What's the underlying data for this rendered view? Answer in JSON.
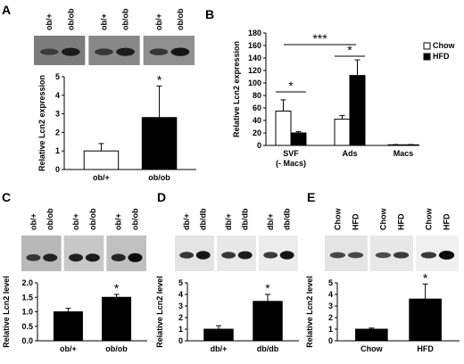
{
  "panels": {
    "A": {
      "letter": "A",
      "lanes": [
        "ob/+",
        "ob/ob",
        "ob/+",
        "ob/ob",
        "ob/+",
        "ob/ob"
      ],
      "chart": {
        "type": "bar",
        "ylabel": "Relative Lcn2 expression",
        "categories": [
          "ob/+",
          "ob/ob"
        ],
        "values": [
          1.0,
          2.8
        ],
        "errors": [
          0.4,
          1.7
        ],
        "fills": [
          "#ffffff",
          "#000000"
        ],
        "yticks": [
          "0",
          "1",
          "2",
          "3",
          "4",
          "5"
        ],
        "ylim": [
          0,
          5
        ],
        "stars": [
          "",
          "*"
        ]
      }
    },
    "B": {
      "letter": "B",
      "chart": {
        "type": "bar",
        "ylabel": "Relative Lcn2 expression",
        "categories": [
          "SVF\n(- Macs)",
          "Ads",
          "Macs"
        ],
        "series": [
          {
            "name": "Chow",
            "color": "#ffffff",
            "values": [
              55,
              42,
              1
            ],
            "errors": [
              18,
              6,
              0.5
            ]
          },
          {
            "name": "HFD",
            "color": "#000000",
            "values": [
              20,
              112,
              1
            ],
            "errors": [
              2,
              25,
              0.5
            ]
          }
        ],
        "yticks": [
          "0",
          "20",
          "40",
          "60",
          "80",
          "100",
          "120",
          "140",
          "160",
          "180"
        ],
        "ylim": [
          0,
          180
        ],
        "stars": [
          "*",
          "*",
          "***"
        ]
      }
    },
    "C": {
      "letter": "C",
      "lanes": [
        "ob/+",
        "ob/ob",
        "ob/+",
        "ob/ob",
        "ob/+",
        "ob/ob"
      ],
      "chart": {
        "type": "bar",
        "ylabel": "Relative Lcn2 level",
        "categories": [
          "ob/+",
          "ob/ob"
        ],
        "values": [
          1.0,
          1.5
        ],
        "errors": [
          0.12,
          0.1
        ],
        "fills": [
          "#000000",
          "#000000"
        ],
        "yticks": [
          "0.0",
          "0.5",
          "1.0",
          "1.5",
          "2.0"
        ],
        "ylim": [
          0,
          2
        ],
        "stars": [
          "",
          "*"
        ]
      }
    },
    "D": {
      "letter": "D",
      "lanes": [
        "db/+",
        "db/db",
        "db/+",
        "db/db",
        "db/+",
        "db/db"
      ],
      "chart": {
        "type": "bar",
        "ylabel": "Relative Lcn2 level",
        "categories": [
          "db/+",
          "db/db"
        ],
        "values": [
          1.0,
          3.4
        ],
        "errors": [
          0.3,
          0.6
        ],
        "fills": [
          "#000000",
          "#000000"
        ],
        "yticks": [
          "0",
          "1",
          "2",
          "3",
          "4",
          "5"
        ],
        "ylim": [
          0,
          5
        ],
        "stars": [
          "",
          "*"
        ]
      }
    },
    "E": {
      "letter": "E",
      "lanes": [
        "Chow",
        "HFD",
        "Chow",
        "HFD",
        "Chow",
        "HFD"
      ],
      "chart": {
        "type": "bar",
        "ylabel": "Relative Lcn2 level",
        "categories": [
          "Chow",
          "HFD"
        ],
        "values": [
          1.0,
          3.6
        ],
        "errors": [
          0.1,
          1.3
        ],
        "fills": [
          "#000000",
          "#000000"
        ],
        "yticks": [
          "0",
          "1",
          "2",
          "3",
          "4",
          "5"
        ],
        "ylim": [
          0,
          5
        ],
        "stars": [
          "",
          "*"
        ]
      }
    }
  }
}
